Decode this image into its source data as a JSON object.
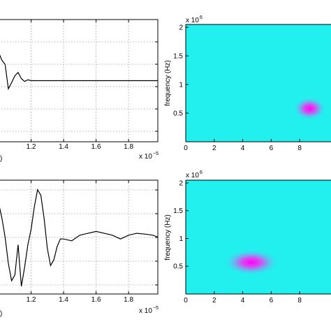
{
  "chart_data": [
    {
      "type": "line",
      "panel": "top-left",
      "x_ticks": [
        "1.2",
        "1.4",
        "1.6",
        "1.8"
      ],
      "x_exponent_label": "x 10",
      "x_exponent_power": "−5",
      "x_scale": 1e-05,
      "xlim": [
        1.0,
        1.98
      ],
      "ylim": [
        -1.5,
        1.5
      ],
      "grid": true,
      "corner_fragment": ")",
      "series": [
        {
          "x": [
            1.0,
            1.02,
            1.04,
            1.06,
            1.08,
            1.1,
            1.12,
            1.14,
            1.16,
            1.18,
            1.2,
            1.25,
            1.3,
            1.4,
            1.5,
            1.6,
            1.7,
            1.8,
            1.9,
            1.98
          ],
          "values": [
            0.7,
            0.5,
            0.4,
            -0.2,
            -0.05,
            0.12,
            0.2,
            0.05,
            -0.02,
            0.02,
            0.0,
            0.0,
            0.0,
            0.0,
            0.0,
            0.0,
            0.0,
            0.0,
            0.0,
            0.0
          ]
        }
      ]
    },
    {
      "type": "heatmap",
      "panel": "top-right",
      "ylabel": "frequency (Hz)",
      "y_exponent_label": "x 10",
      "y_exponent_power": "6",
      "y_ticks": [
        "0.5",
        "1",
        "1.5",
        "2"
      ],
      "x_ticks": [
        "0",
        "2",
        "4",
        "6",
        "8"
      ],
      "xlim": [
        0,
        10.2
      ],
      "ylim": [
        0,
        2.05
      ],
      "peak": {
        "x": 8.7,
        "y": 0.58
      },
      "background_color": "#22f0ee",
      "peak_color": "#ff00ff"
    },
    {
      "type": "line",
      "panel": "bottom-left",
      "x_ticks": [
        "1.2",
        "1.4",
        "1.6",
        "1.8"
      ],
      "x_exponent_label": "x 10",
      "x_exponent_power": "−5",
      "x_scale": 1e-05,
      "xlim": [
        1.0,
        1.98
      ],
      "ylim": [
        -1.5,
        1.5
      ],
      "grid": true,
      "corner_fragment": ")",
      "series": [
        {
          "x": [
            1.0,
            1.02,
            1.04,
            1.06,
            1.08,
            1.1,
            1.12,
            1.14,
            1.16,
            1.18,
            1.2,
            1.22,
            1.24,
            1.26,
            1.28,
            1.3,
            1.32,
            1.34,
            1.36,
            1.38,
            1.4,
            1.45,
            1.5,
            1.55,
            1.6,
            1.65,
            1.7,
            1.75,
            1.8,
            1.85,
            1.9,
            1.95,
            1.98
          ],
          "values": [
            0.9,
            0.5,
            0.0,
            -0.7,
            -1.15,
            -1.0,
            -0.2,
            -1.3,
            -0.8,
            -0.2,
            0.2,
            0.8,
            1.25,
            1.1,
            0.5,
            -0.3,
            -0.75,
            -0.6,
            -0.25,
            -0.05,
            -0.05,
            -0.1,
            0.05,
            0.1,
            0.15,
            0.1,
            0.05,
            -0.05,
            0.05,
            0.1,
            0.08,
            0.05,
            0.0
          ]
        }
      ]
    },
    {
      "type": "heatmap",
      "panel": "bottom-right",
      "ylabel": "frequency (Hz)",
      "y_exponent_label": "x 10",
      "y_exponent_power": "6",
      "y_ticks": [
        "0.5",
        "1",
        "1.5",
        "2"
      ],
      "x_ticks": [
        "0",
        "2",
        "4",
        "6",
        "8"
      ],
      "xlim": [
        0,
        10.2
      ],
      "ylim": [
        0,
        2.05
      ],
      "peak": {
        "x": 4.6,
        "y": 0.57
      },
      "background_color": "#22f0ee",
      "peak_color": "#ff00ff"
    }
  ]
}
